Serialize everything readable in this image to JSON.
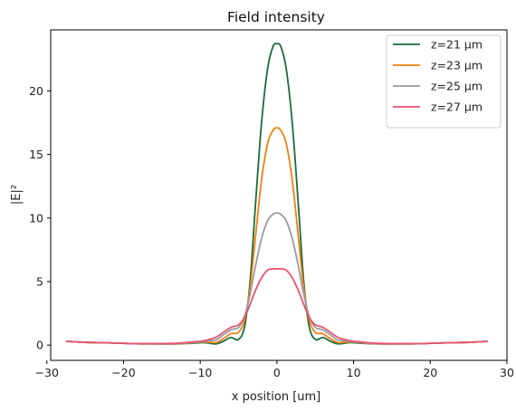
{
  "chart_data": {
    "type": "line",
    "title": "Field intensity",
    "xlabel": "x position [um]",
    "ylabel": "|E|²",
    "xlim": [
      -29.5,
      30
    ],
    "ylim": [
      -1.2,
      24.8
    ],
    "xticks": [
      -30,
      -20,
      -10,
      0,
      10,
      20,
      30
    ],
    "yticks": [
      0,
      5,
      10,
      15,
      20
    ],
    "grid": false,
    "legend_position": "top-right",
    "series": [
      {
        "name": "z=21 μm",
        "color": "#1a6b3c",
        "x": [
          -27.5,
          -25,
          -22,
          -19,
          -16,
          -13,
          -11,
          -9.5,
          -8,
          -7,
          -6,
          -5,
          -4.2,
          -3.5,
          -2.8,
          -2,
          -1.2,
          -0.5,
          0,
          0.5,
          1.2,
          2,
          2.8,
          3.5,
          4.2,
          5,
          6,
          7,
          8,
          9.5,
          11,
          13,
          16,
          19,
          22,
          25,
          27.5
        ],
        "y": [
          0.3,
          0.22,
          0.18,
          0.12,
          0.1,
          0.1,
          0.15,
          0.2,
          0.1,
          0.3,
          0.6,
          0.45,
          1.5,
          5,
          11,
          17.5,
          21.8,
          23.5,
          23.7,
          23.5,
          21.8,
          17.5,
          11,
          5,
          1.5,
          0.45,
          0.6,
          0.3,
          0.1,
          0.2,
          0.15,
          0.1,
          0.1,
          0.12,
          0.18,
          0.22,
          0.3
        ]
      },
      {
        "name": "z=23 μm",
        "color": "#f07f12",
        "x": [
          -27.5,
          -25,
          -22,
          -19,
          -16,
          -13,
          -11,
          -9.5,
          -8,
          -7,
          -6,
          -5,
          -4.2,
          -3.5,
          -2.8,
          -2,
          -1.2,
          -0.5,
          0,
          0.5,
          1.2,
          2,
          2.8,
          3.5,
          4.2,
          5,
          6,
          7,
          8,
          9.5,
          11,
          13,
          16,
          19,
          22,
          25,
          27.5
        ],
        "y": [
          0.3,
          0.22,
          0.18,
          0.12,
          0.1,
          0.1,
          0.18,
          0.25,
          0.2,
          0.5,
          0.9,
          1.0,
          2.0,
          4.5,
          8.5,
          13.0,
          15.9,
          16.9,
          17.1,
          16.9,
          15.9,
          13.0,
          8.5,
          4.5,
          2.0,
          1.0,
          0.9,
          0.5,
          0.2,
          0.25,
          0.18,
          0.1,
          0.1,
          0.12,
          0.18,
          0.22,
          0.3
        ]
      },
      {
        "name": "z=25 μm",
        "color": "#9a99a3",
        "x": [
          -27.5,
          -25,
          -22,
          -19,
          -16,
          -13,
          -11,
          -9.5,
          -8,
          -7,
          -6,
          -5,
          -4.2,
          -3.5,
          -2.8,
          -2,
          -1.2,
          -0.5,
          0,
          0.5,
          1.2,
          2,
          2.8,
          3.5,
          4.2,
          5,
          6,
          7,
          8,
          9.5,
          11,
          13,
          16,
          19,
          22,
          25,
          27.5
        ],
        "y": [
          0.3,
          0.22,
          0.18,
          0.12,
          0.1,
          0.12,
          0.2,
          0.3,
          0.4,
          0.8,
          1.2,
          1.4,
          2.3,
          4.0,
          6.2,
          8.4,
          9.8,
          10.3,
          10.4,
          10.3,
          9.8,
          8.4,
          6.2,
          4.0,
          2.3,
          1.4,
          1.2,
          0.8,
          0.4,
          0.3,
          0.2,
          0.12,
          0.1,
          0.12,
          0.18,
          0.22,
          0.3
        ]
      },
      {
        "name": "z=27 μm",
        "color": "#e8536b",
        "x": [
          -27.5,
          -25,
          -22,
          -19,
          -16,
          -13,
          -11,
          -9.5,
          -8,
          -7,
          -6,
          -5,
          -4.2,
          -3.5,
          -2.8,
          -2,
          -1.2,
          -0.5,
          0,
          0.5,
          1.2,
          2,
          2.8,
          3.5,
          4.2,
          5,
          6,
          7,
          8,
          9.5,
          11,
          13,
          16,
          19,
          22,
          25,
          27.5
        ],
        "y": [
          0.3,
          0.22,
          0.18,
          0.12,
          0.12,
          0.15,
          0.25,
          0.35,
          0.6,
          1.0,
          1.4,
          1.6,
          2.2,
          3.2,
          4.3,
          5.3,
          5.9,
          6.0,
          6.0,
          6.0,
          5.9,
          5.3,
          4.3,
          3.2,
          2.2,
          1.6,
          1.4,
          1.0,
          0.6,
          0.35,
          0.25,
          0.15,
          0.12,
          0.12,
          0.18,
          0.22,
          0.3
        ]
      }
    ]
  }
}
